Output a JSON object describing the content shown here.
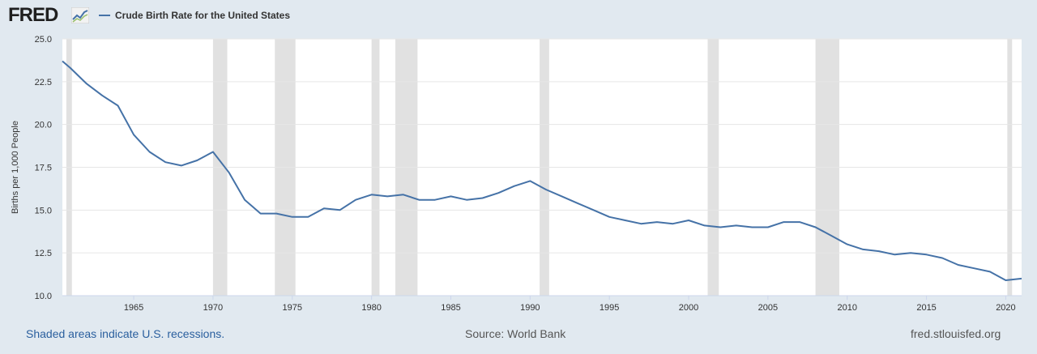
{
  "header": {
    "logo_text": "FRED",
    "logo_icon": "line-chart-icon",
    "series_label": "Crude Birth Rate for the United States"
  },
  "colors": {
    "background": "#e1e9f0",
    "plot_background": "#ffffff",
    "series": "#4572a7",
    "recession": "#e1e1e1",
    "grid": "#e6e6e6",
    "footer_link": "#2a5f9e"
  },
  "chart_data": {
    "type": "line",
    "ylabel": "Births per 1,000 People",
    "xlabel": "",
    "xlim": [
      1960.5,
      2021
    ],
    "ylim": [
      10.0,
      25.0
    ],
    "y_ticks": [
      "10.0",
      "12.5",
      "15.0",
      "17.5",
      "20.0",
      "22.5",
      "25.0"
    ],
    "x_ticks": [
      "1965",
      "1970",
      "1975",
      "1980",
      "1985",
      "1990",
      "1995",
      "2000",
      "2005",
      "2010",
      "2015",
      "2020"
    ],
    "grid": true,
    "recessions": [
      [
        1960.75,
        1961.1
      ],
      [
        1970.0,
        1970.9
      ],
      [
        1973.9,
        1975.2
      ],
      [
        1980.0,
        1980.5
      ],
      [
        1981.5,
        1982.9
      ],
      [
        1990.6,
        1991.2
      ],
      [
        2001.2,
        2001.9
      ],
      [
        2008.0,
        2009.5
      ],
      [
        2020.1,
        2020.4
      ]
    ],
    "series": [
      {
        "name": "Crude Birth Rate for the United States",
        "x": [
          1960,
          1961,
          1962,
          1963,
          1964,
          1965,
          1966,
          1967,
          1968,
          1969,
          1970,
          1971,
          1972,
          1973,
          1974,
          1975,
          1976,
          1977,
          1978,
          1979,
          1980,
          1981,
          1982,
          1983,
          1984,
          1985,
          1986,
          1987,
          1988,
          1989,
          1990,
          1991,
          1992,
          1993,
          1994,
          1995,
          1996,
          1997,
          1998,
          1999,
          2000,
          2001,
          2002,
          2003,
          2004,
          2005,
          2006,
          2007,
          2008,
          2009,
          2010,
          2011,
          2012,
          2013,
          2014,
          2015,
          2016,
          2017,
          2018,
          2019,
          2020,
          2021
        ],
        "values": [
          23.7,
          23.3,
          22.4,
          21.7,
          21.1,
          19.4,
          18.4,
          17.8,
          17.6,
          17.9,
          18.4,
          17.2,
          15.6,
          14.8,
          14.8,
          14.6,
          14.6,
          15.1,
          15.0,
          15.6,
          15.9,
          15.8,
          15.9,
          15.6,
          15.6,
          15.8,
          15.6,
          15.7,
          16.0,
          16.4,
          16.7,
          16.2,
          15.8,
          15.4,
          15.0,
          14.6,
          14.4,
          14.2,
          14.3,
          14.2,
          14.4,
          14.1,
          14.0,
          14.1,
          14.0,
          14.0,
          14.3,
          14.3,
          14.0,
          13.5,
          13.0,
          12.7,
          12.6,
          12.4,
          12.5,
          12.4,
          12.2,
          11.8,
          11.6,
          11.4,
          10.9,
          11.0
        ]
      }
    ]
  },
  "footer": {
    "note": "Shaded areas indicate U.S. recessions.",
    "source": "Source: World Bank",
    "site": "fred.stlouisfed.org"
  }
}
